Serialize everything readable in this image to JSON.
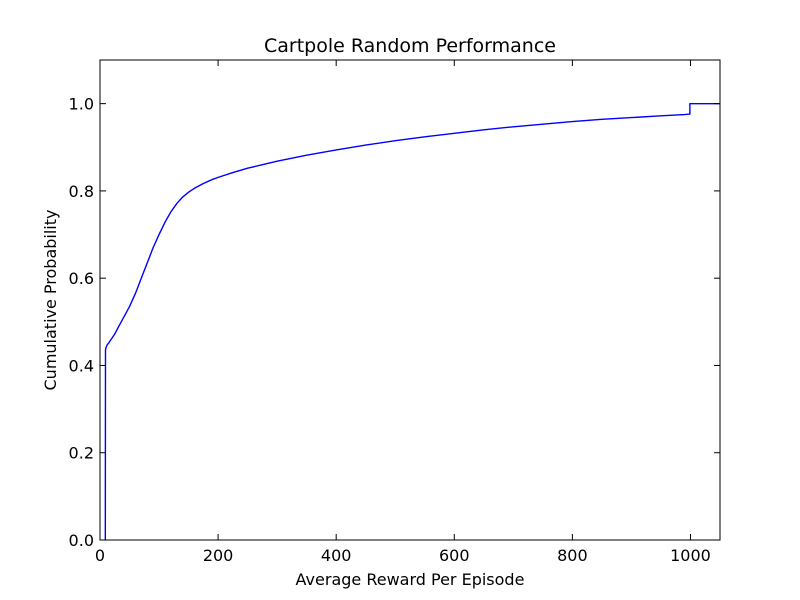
{
  "chart_data": {
    "type": "line",
    "title": "Cartpole Random Performance",
    "xlabel": "Average Reward Per Episode",
    "ylabel": "Cumulative Probability",
    "xlim": [
      0,
      1050
    ],
    "ylim": [
      0,
      1.1
    ],
    "xticks": [
      0,
      200,
      400,
      600,
      800,
      1000
    ],
    "xtick_labels": [
      "0",
      "200",
      "400",
      "600",
      "800",
      "1000"
    ],
    "yticks": [
      0.0,
      0.2,
      0.4,
      0.6,
      0.8,
      1.0
    ],
    "ytick_labels": [
      "0.0",
      "0.2",
      "0.4",
      "0.6",
      "0.8",
      "1.0"
    ],
    "grid": false,
    "legend": "none",
    "series": [
      {
        "color": "#0000ff",
        "x": [
          9,
          9,
          9.3,
          10,
          12,
          15,
          20,
          25,
          30,
          40,
          50,
          60,
          70,
          80,
          90,
          100,
          110,
          120,
          130,
          140,
          150,
          160,
          175,
          190,
          200,
          225,
          250,
          275,
          300,
          350,
          400,
          450,
          500,
          550,
          600,
          650,
          700,
          750,
          800,
          850,
          900,
          950,
          990,
          999,
          999,
          1050
        ],
        "y": [
          0.0,
          0.0,
          0.435,
          0.44,
          0.447,
          0.452,
          0.462,
          0.472,
          0.485,
          0.51,
          0.535,
          0.565,
          0.6,
          0.635,
          0.67,
          0.7,
          0.728,
          0.752,
          0.771,
          0.786,
          0.797,
          0.806,
          0.817,
          0.826,
          0.831,
          0.842,
          0.852,
          0.86,
          0.868,
          0.882,
          0.894,
          0.905,
          0.915,
          0.924,
          0.932,
          0.94,
          0.947,
          0.953,
          0.959,
          0.964,
          0.968,
          0.972,
          0.975,
          0.976,
          1.0,
          1.0
        ]
      }
    ]
  }
}
